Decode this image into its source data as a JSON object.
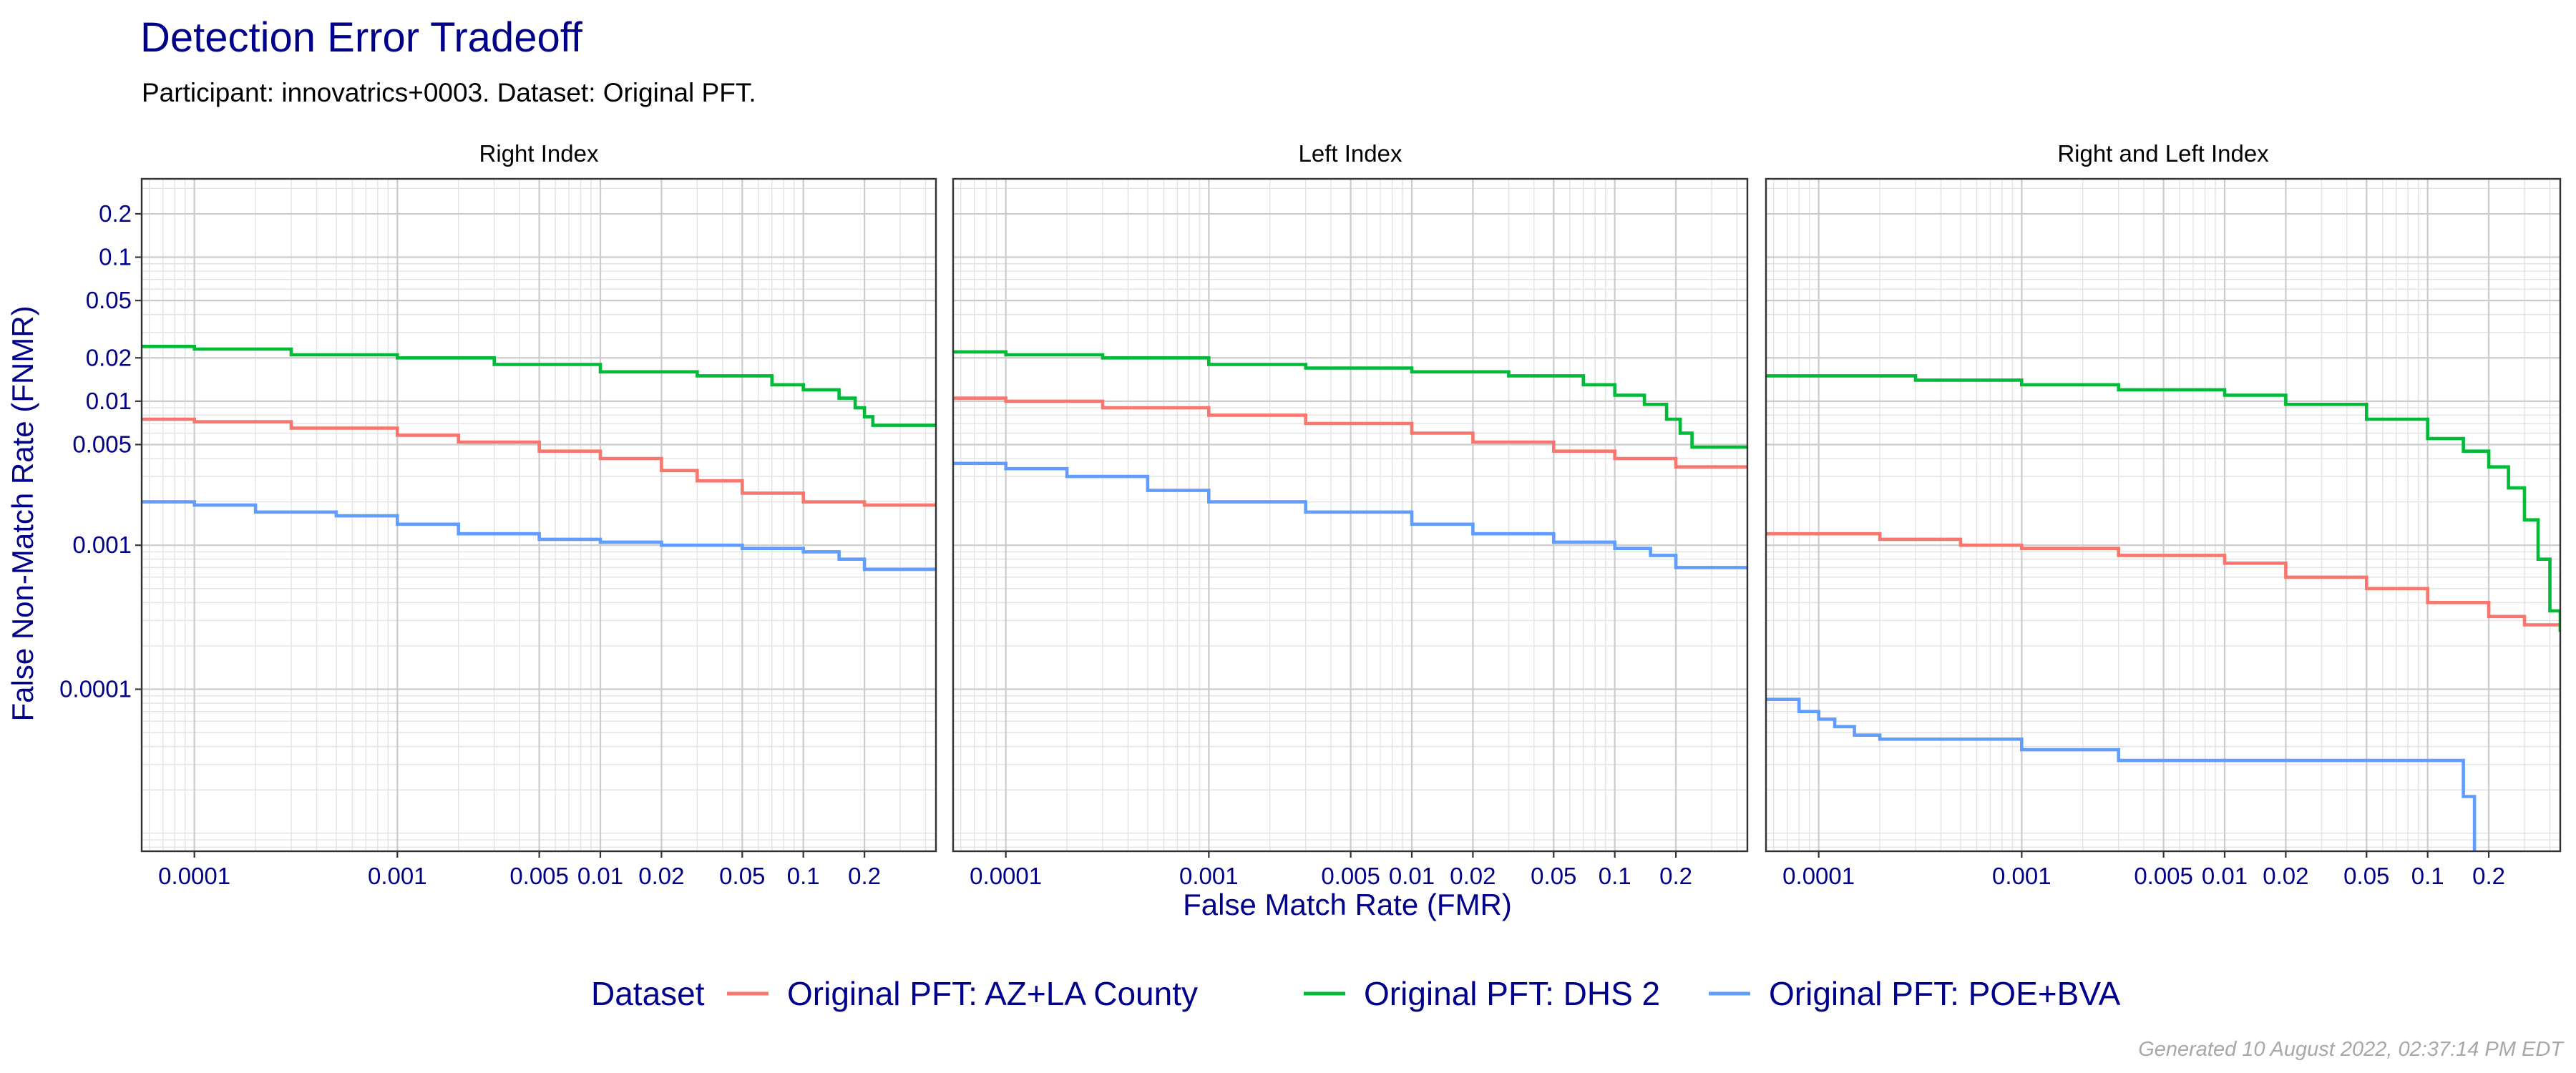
{
  "title": "Detection Error Tradeoff",
  "subtitle": "Participant: innovatrics+0003. Dataset: Original PFT.",
  "caption": "Generated 10 August 2022, 02:37:14 PM EDT",
  "chart_data": {
    "type": "line",
    "xlabel": "False Match Rate (FMR)",
    "ylabel": "False Non-Match Rate (FNMR)",
    "x_scale": "log",
    "y_scale": "log",
    "xlim": [
      5.5e-05,
      0.45
    ],
    "ylim": [
      7.5e-06,
      0.35
    ],
    "grid": true,
    "legend": {
      "title": "Dataset",
      "position": "bottom"
    },
    "x_ticks": [
      0.0001,
      0.001,
      0.005,
      0.01,
      0.02,
      0.05,
      0.1,
      0.2
    ],
    "x_tick_labels": [
      "0.0001",
      "0.001",
      "0.005",
      "0.01",
      "0.02",
      "0.05",
      "0.1",
      "0.2"
    ],
    "y_ticks": [
      0.0001,
      0.001,
      0.005,
      0.01,
      0.02,
      0.05,
      0.1,
      0.2
    ],
    "y_tick_labels": [
      "0.0001",
      "0.001",
      "0.005",
      "0.01",
      "0.02",
      "0.05",
      "0.1",
      "0.2"
    ],
    "series_legend": [
      {
        "name": "Original PFT: AZ+LA County",
        "color": "#f8766d"
      },
      {
        "name": "Original PFT: DHS 2",
        "color": "#00ba38"
      },
      {
        "name": "Original PFT: POE+BVA",
        "color": "#619cff"
      }
    ],
    "panels": [
      {
        "name": "Right Index",
        "series": [
          {
            "name": "Original PFT: AZ+LA County",
            "color": "#f8766d",
            "x": [
              5.5e-05,
              0.0001,
              0.0003,
              0.001,
              0.002,
              0.005,
              0.01,
              0.02,
              0.03,
              0.05,
              0.1,
              0.2,
              0.45
            ],
            "y": [
              0.0075,
              0.0072,
              0.0065,
              0.0058,
              0.0052,
              0.0045,
              0.004,
              0.0033,
              0.0028,
              0.0023,
              0.002,
              0.0019,
              0.0019
            ]
          },
          {
            "name": "Original PFT: DHS 2",
            "color": "#00ba38",
            "x": [
              5.5e-05,
              0.0001,
              0.0003,
              0.001,
              0.003,
              0.01,
              0.03,
              0.07,
              0.1,
              0.15,
              0.18,
              0.2,
              0.22,
              0.45
            ],
            "y": [
              0.024,
              0.023,
              0.021,
              0.02,
              0.018,
              0.016,
              0.015,
              0.013,
              0.012,
              0.0105,
              0.009,
              0.0078,
              0.0068,
              0.0068
            ]
          },
          {
            "name": "Original PFT: POE+BVA",
            "color": "#619cff",
            "x": [
              5.5e-05,
              0.0001,
              0.0002,
              0.0005,
              0.001,
              0.002,
              0.005,
              0.01,
              0.02,
              0.05,
              0.1,
              0.15,
              0.2,
              0.45
            ],
            "y": [
              0.002,
              0.0019,
              0.0017,
              0.0016,
              0.0014,
              0.0012,
              0.0011,
              0.00105,
              0.001,
              0.00095,
              0.0009,
              0.0008,
              0.00068,
              0.00068
            ]
          }
        ]
      },
      {
        "name": "Left Index",
        "series": [
          {
            "name": "Original PFT: AZ+LA County",
            "color": "#f8766d",
            "x": [
              5.5e-05,
              0.0001,
              0.0003,
              0.001,
              0.003,
              0.01,
              0.02,
              0.05,
              0.1,
              0.2,
              0.45
            ],
            "y": [
              0.0105,
              0.01,
              0.009,
              0.008,
              0.007,
              0.006,
              0.0052,
              0.0045,
              0.004,
              0.0035,
              0.0035
            ]
          },
          {
            "name": "Original PFT: DHS 2",
            "color": "#00ba38",
            "x": [
              5.5e-05,
              0.0001,
              0.0003,
              0.001,
              0.003,
              0.01,
              0.03,
              0.07,
              0.1,
              0.14,
              0.18,
              0.21,
              0.24,
              0.45
            ],
            "y": [
              0.022,
              0.021,
              0.02,
              0.018,
              0.017,
              0.016,
              0.015,
              0.013,
              0.011,
              0.0095,
              0.0075,
              0.006,
              0.0048,
              0.0048
            ]
          },
          {
            "name": "Original PFT: POE+BVA",
            "color": "#619cff",
            "x": [
              5.5e-05,
              0.0001,
              0.0002,
              0.0005,
              0.001,
              0.003,
              0.01,
              0.02,
              0.05,
              0.1,
              0.15,
              0.2,
              0.45
            ],
            "y": [
              0.0037,
              0.0034,
              0.003,
              0.0024,
              0.002,
              0.0017,
              0.0014,
              0.0012,
              0.00105,
              0.00095,
              0.00085,
              0.0007,
              0.0007
            ]
          }
        ]
      },
      {
        "name": "Right and Left Index",
        "series": [
          {
            "name": "Original PFT: AZ+LA County",
            "color": "#f8766d",
            "x": [
              5.5e-05,
              0.0001,
              0.0002,
              0.0005,
              0.001,
              0.003,
              0.01,
              0.02,
              0.05,
              0.1,
              0.2,
              0.3,
              0.45
            ],
            "y": [
              0.0012,
              0.0012,
              0.0011,
              0.001,
              0.00095,
              0.00085,
              0.00075,
              0.0006,
              0.0005,
              0.0004,
              0.00032,
              0.00028,
              0.00025
            ]
          },
          {
            "name": "Original PFT: DHS 2",
            "color": "#00ba38",
            "x": [
              5.5e-05,
              0.0001,
              0.0003,
              0.001,
              0.003,
              0.01,
              0.02,
              0.05,
              0.1,
              0.15,
              0.2,
              0.25,
              0.3,
              0.35,
              0.4,
              0.45
            ],
            "y": [
              0.015,
              0.015,
              0.014,
              0.013,
              0.012,
              0.011,
              0.0095,
              0.0075,
              0.0055,
              0.0045,
              0.0035,
              0.0025,
              0.0015,
              0.0008,
              0.00035,
              0.00025
            ]
          },
          {
            "name": "Original PFT: POE+BVA",
            "color": "#619cff",
            "x": [
              5.5e-05,
              8e-05,
              0.0001,
              0.00012,
              0.00015,
              0.0002,
              0.0005,
              0.001,
              0.0015,
              0.003,
              0.01,
              0.05,
              0.14,
              0.15,
              0.16,
              0.17
            ],
            "y": [
              8.5e-05,
              7e-05,
              6.2e-05,
              5.5e-05,
              4.8e-05,
              4.5e-05,
              4.5e-05,
              3.8e-05,
              3.8e-05,
              3.2e-05,
              3.2e-05,
              3.2e-05,
              3.2e-05,
              1.8e-05,
              1.8e-05,
              7.5e-06
            ]
          }
        ]
      }
    ]
  }
}
